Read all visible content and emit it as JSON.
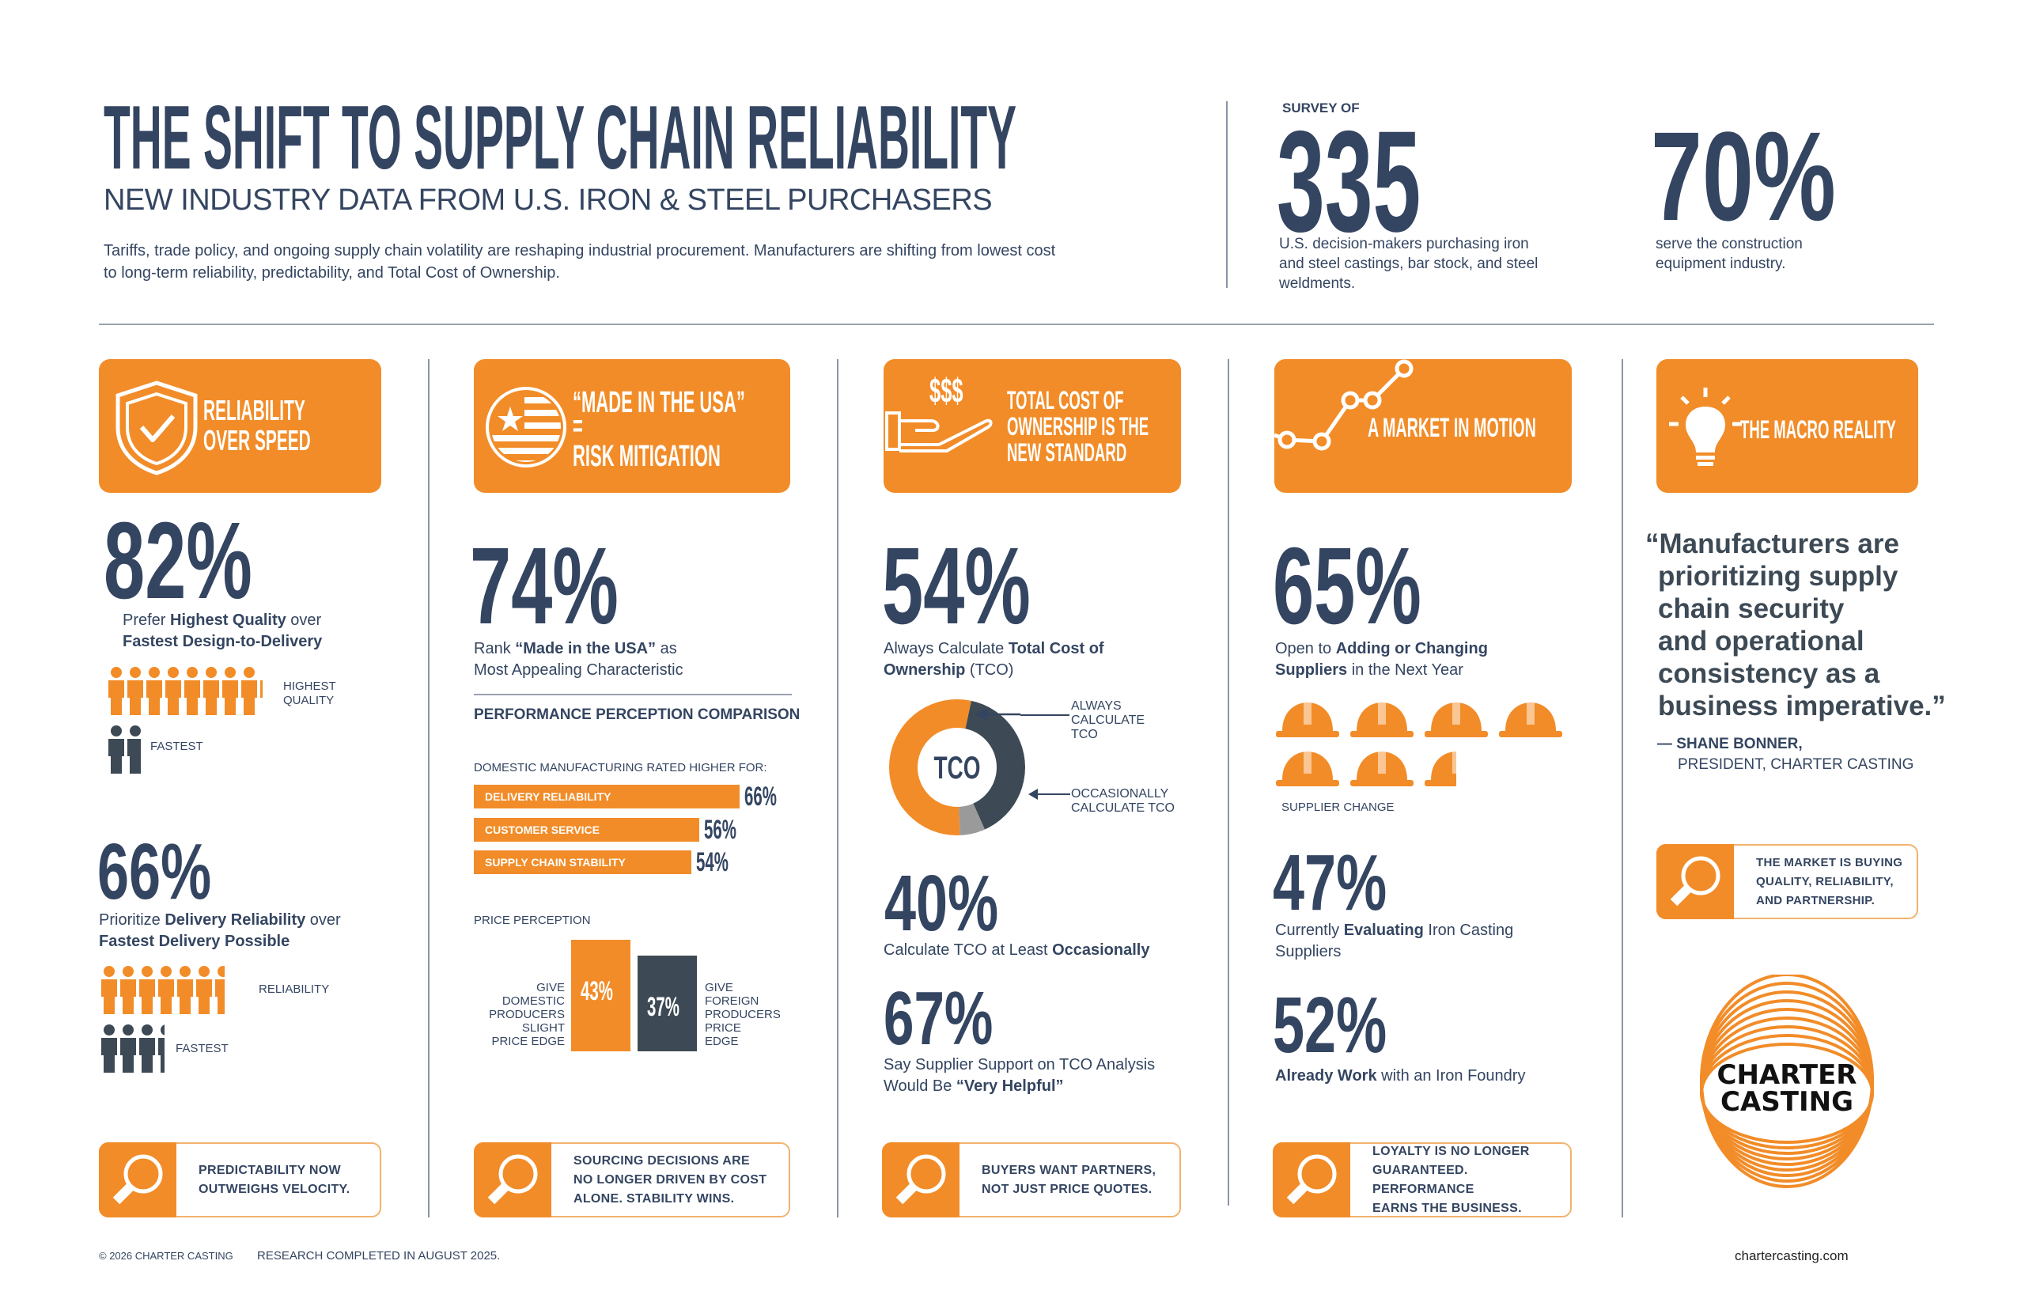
{
  "header": {
    "title": "THE SHIFT TO SUPPLY CHAIN RELIABILITY",
    "subtitle": "NEW INDUSTRY DATA FROM U.S. IRON & STEEL PURCHASERS",
    "intro_line1": "Tariffs, trade policy, and ongoing supply chain volatility are reshaping industrial procurement. Manufacturers are shifting from lowest cost",
    "intro_line2": "to long-term reliability, predictability, and Total Cost of Ownership.",
    "survey_label": "SURVEY OF",
    "survey_count": "335",
    "survey_desc": [
      "U.S. decision-makers purchasing iron",
      "and steel castings, bar stock, and steel",
      "weldments."
    ],
    "stat2_value": "70%",
    "stat2_desc": [
      "serve the construction",
      "equipment industry."
    ]
  },
  "colors": {
    "accent": "#F28C28",
    "navy": "#344561",
    "slate": "#3D4A55",
    "gray": "#9A9A9A"
  },
  "col1": {
    "heading": [
      "RELIABILITY",
      "OVER SPEED"
    ],
    "icon": "shield-check-icon",
    "stat1": "82%",
    "stat1_pre": "Prefer ",
    "stat1_bold": "Highest Quality",
    "stat1_mid": " over",
    "stat1_line2": "Fastest Design-to-Delivery",
    "icons1": {
      "primary": 8.2,
      "secondary": 1.8,
      "primary_label": [
        "HIGHEST",
        "QUALITY"
      ],
      "secondary_label": "FASTEST"
    },
    "stat2": "66%",
    "stat2_pre": "Prioritize ",
    "stat2_bold": "Delivery Reliability",
    "stat2_mid": " over",
    "stat2_line2": "Fastest Delivery Possible",
    "icons2": {
      "primary": 6.6,
      "secondary": 3.4,
      "primary_label": "RELIABILITY",
      "secondary_label": "FASTEST"
    },
    "callout": [
      "PREDICTABILITY NOW",
      "OUTWEIGHS VELOCITY."
    ]
  },
  "col2": {
    "heading": [
      "“MADE IN THE USA”",
      "=",
      "RISK MITIGATION"
    ],
    "icon": "usa-flag-icon",
    "stat": "74%",
    "stat_pre": "Rank ",
    "stat_bold": "“Made in the USA”",
    "stat_mid": " as",
    "stat_line2": "Most Appealing Characteristic",
    "section_title": "PERFORMANCE PERCEPTION COMPARISON",
    "bars_label": "DOMESTIC MANUFACTURING RATED HIGHER FOR:",
    "price_label": "PRICE PERCEPTION",
    "callout": [
      "SOURCING DECISIONS ARE",
      "NO LONGER DRIVEN BY COST",
      "ALONE. STABILITY WINS."
    ]
  },
  "col3": {
    "heading": [
      "TOTAL COST OF",
      "OWNERSHIP IS THE",
      "NEW STANDARD"
    ],
    "heading_icon_text": "$$$",
    "icon": "hand-money-icon",
    "stat1": "54%",
    "stat1_pre": "Always Calculate ",
    "stat1_bold": "Total Cost of",
    "stat1_line2_bold": "Ownership",
    "stat1_line2": " (TCO)",
    "gear_center": "TCO",
    "gear_label1": [
      "ALWAYS",
      "CALCULATE",
      "TCO"
    ],
    "gear_label2": [
      "OCCASIONALLY",
      "CALCULATE TCO"
    ],
    "stat2": "40%",
    "stat2_pre": "Calculate TCO at Least ",
    "stat2_bold": "Occasionally",
    "stat3": "67%",
    "stat3_line1": "Say Supplier Support on TCO Analysis",
    "stat3_pre": "Would Be ",
    "stat3_bold": "“Very Helpful”",
    "callout": [
      "BUYERS WANT PARTNERS,",
      "NOT JUST PRICE QUOTES."
    ]
  },
  "col4": {
    "heading": [
      "A MARKET IN MOTION"
    ],
    "icon": "line-chart-icon",
    "stat1": "65%",
    "stat1_pre": "Open to ",
    "stat1_bold": "Adding or Changing",
    "stat1_line2_bold": "Suppliers",
    "stat1_line2": " in the Next Year",
    "helmets": 6.5,
    "helmet_label": "SUPPLIER CHANGE",
    "stat2": "47%",
    "stat2_pre": "Currently ",
    "stat2_bold": "Evaluating",
    "stat2_mid": " Iron Casting",
    "stat2_line2": "Suppliers",
    "stat3": "52%",
    "stat3_bold": "Already Work",
    "stat3_rest": " with an Iron Foundry",
    "callout": [
      "LOYALTY IS NO LONGER",
      "GUARANTEED. PERFORMANCE",
      "EARNS THE BUSINESS."
    ]
  },
  "col5": {
    "heading": [
      "THE MACRO REALITY"
    ],
    "icon": "lightbulb-icon",
    "quote": [
      "“Manufacturers are",
      "prioritizing supply",
      "chain security",
      "and operational",
      "consistency as a",
      "business imperative.”"
    ],
    "author": "— SHANE BONNER,",
    "author_title": "PRESIDENT, CHARTER CASTING",
    "callout": [
      "THE MARKET IS BUYING",
      "QUALITY, RELIABILITY,",
      "AND PARTNERSHIP."
    ],
    "logo": [
      "CHARTER",
      "CASTING"
    ]
  },
  "chart_data": [
    {
      "type": "bar",
      "orientation": "horizontal",
      "title": "DOMESTIC MANUFACTURING RATED HIGHER FOR:",
      "categories": [
        "DELIVERY RELIABILITY",
        "CUSTOMER SERVICE",
        "SUPPLY CHAIN STABILITY"
      ],
      "values": [
        66,
        56,
        54
      ],
      "value_labels": [
        "66%",
        "56%",
        "54%"
      ],
      "unit": "%"
    },
    {
      "type": "bar",
      "title": "PRICE PERCEPTION",
      "categories": [
        "GIVE DOMESTIC PRODUCERS SLIGHT PRICE EDGE",
        "GIVE FOREIGN PRODUCERS PRICE EDGE"
      ],
      "category_lines": [
        [
          "GIVE",
          "DOMESTIC",
          "PRODUCERS",
          "SLIGHT",
          "PRICE EDGE"
        ],
        [
          "GIVE",
          "FOREIGN",
          "PRODUCERS",
          "PRICE",
          "EDGE"
        ]
      ],
      "values": [
        43,
        37
      ],
      "value_labels": [
        "43%",
        "37%"
      ],
      "colors": [
        "#F28C28",
        "#3D4A55"
      ]
    },
    {
      "type": "pie",
      "title": "TCO",
      "slices": [
        {
          "label": "ALWAYS CALCULATE TCO",
          "value": 54,
          "color": "#F28C28"
        },
        {
          "label": "OCCASIONALLY CALCULATE TCO",
          "value": 40,
          "color": "#3D4A55"
        },
        {
          "label": "",
          "value": 6,
          "color": "#9A9A9A"
        }
      ]
    }
  ],
  "footer": {
    "copyright": "© 2026 CHARTER CASTING",
    "research": "RESEARCH COMPLETED IN AUGUST 2025.",
    "website": "chartercasting.com"
  }
}
